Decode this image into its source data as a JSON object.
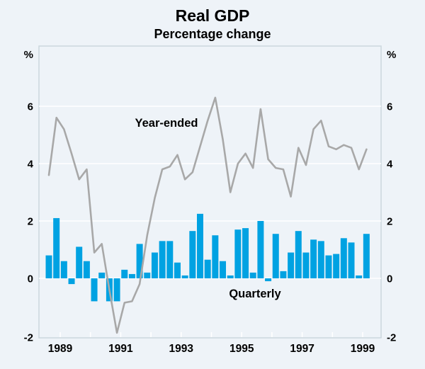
{
  "header": {
    "title": "Real GDP",
    "subtitle": "Percentage change"
  },
  "chart_data": {
    "type": "bar+line",
    "title": "Real GDP",
    "subtitle": "Percentage change",
    "unit_left": "%",
    "unit_right": "%",
    "ylim": [
      -2.1,
      8.1
    ],
    "yticks": [
      6,
      4,
      2,
      0,
      -2
    ],
    "ytick_labels": [
      "6",
      "4",
      "2",
      "0",
      "-2"
    ],
    "xtick_labels": [
      "1989",
      "1991",
      "1993",
      "1995",
      "1997",
      "1999"
    ],
    "grid": "horizontal white gridlines at 0,2,4,6; yearly white ticks on bottom axis",
    "legend": "in-plot text annotations",
    "quarters": [
      "1989 Q1",
      "1989 Q2",
      "1989 Q3",
      "1989 Q4",
      "1990 Q1",
      "1990 Q2",
      "1990 Q3",
      "1990 Q4",
      "1991 Q1",
      "1991 Q2",
      "1991 Q3",
      "1991 Q4",
      "1992 Q1",
      "1992 Q2",
      "1992 Q3",
      "1992 Q4",
      "1993 Q1",
      "1993 Q2",
      "1993 Q3",
      "1993 Q4",
      "1994 Q1",
      "1994 Q2",
      "1994 Q3",
      "1994 Q4",
      "1995 Q1",
      "1995 Q2",
      "1995 Q3",
      "1995 Q4",
      "1996 Q1",
      "1996 Q2",
      "1996 Q3",
      "1996 Q4",
      "1997 Q1",
      "1997 Q2",
      "1997 Q3",
      "1997 Q4",
      "1998 Q1",
      "1998 Q2",
      "1998 Q3",
      "1998 Q4",
      "1999 Q1",
      "1999 Q2",
      "1999 Q3"
    ],
    "series": [
      {
        "name": "Year-ended",
        "type": "line",
        "color": "#a8a8a8",
        "values": [
          3.6,
          5.6,
          5.2,
          4.35,
          3.45,
          3.8,
          0.9,
          1.2,
          -0.4,
          -1.9,
          -0.85,
          -0.8,
          -0.2,
          1.5,
          2.8,
          3.8,
          3.9,
          4.3,
          3.45,
          3.7,
          4.6,
          5.5,
          6.3,
          4.85,
          3.0,
          4.0,
          4.35,
          3.85,
          5.9,
          4.15,
          3.85,
          3.8,
          2.85,
          4.55,
          3.95,
          5.2,
          5.5,
          4.6,
          4.5,
          4.65,
          4.55,
          3.8,
          4.5
        ]
      },
      {
        "name": "Quarterly",
        "type": "bar",
        "color": "#00a2e2",
        "values": [
          0.8,
          2.1,
          0.6,
          -0.2,
          1.1,
          0.6,
          -0.8,
          0.2,
          -0.8,
          -0.8,
          0.3,
          0.15,
          1.2,
          0.2,
          0.9,
          1.3,
          1.3,
          0.55,
          0.1,
          1.65,
          2.25,
          0.65,
          1.5,
          0.6,
          0.1,
          1.7,
          1.75,
          0.2,
          2.0,
          -0.1,
          1.55,
          0.25,
          0.9,
          1.65,
          0.9,
          1.35,
          1.3,
          0.8,
          0.85,
          1.4,
          1.25,
          0.1,
          1.55
        ]
      }
    ]
  },
  "colors": {
    "background": "#eef3f8",
    "bar": "#00a2e2",
    "line": "#a8a8a8",
    "grid": "#ffffff",
    "frame": "#ccd7de",
    "text": "#000000"
  }
}
